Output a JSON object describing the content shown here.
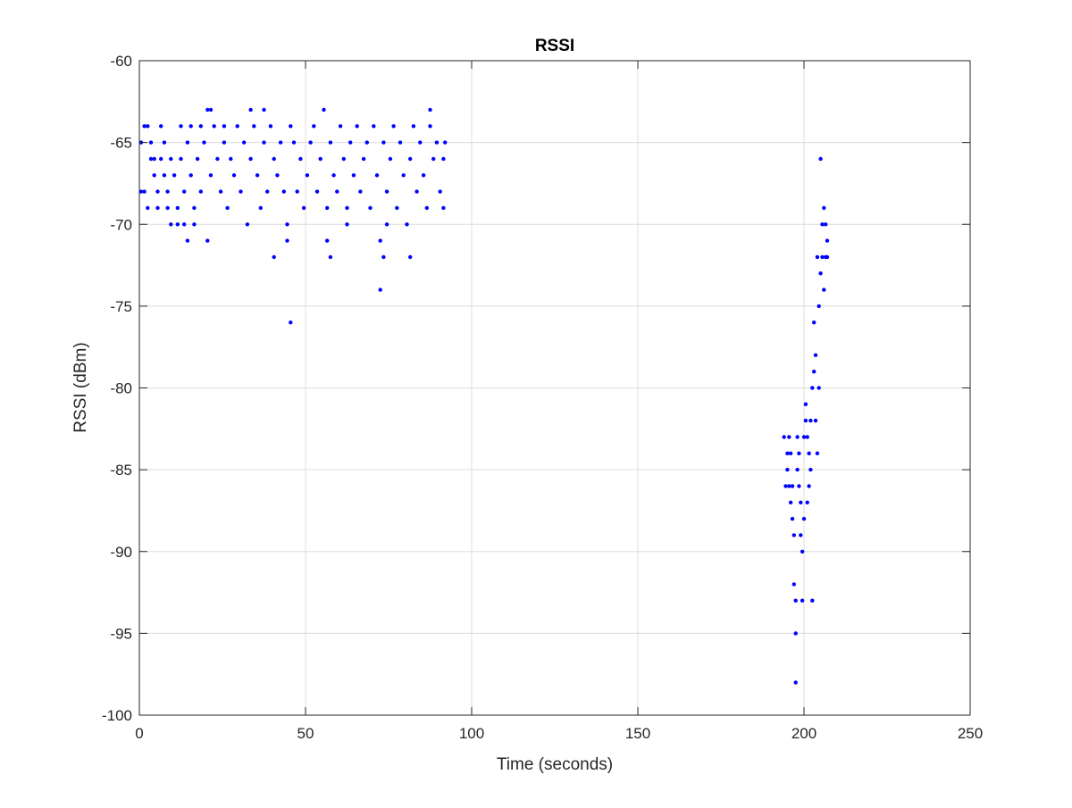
{
  "chart_data": {
    "type": "scatter",
    "title": "RSSI",
    "xlabel": "Time (seconds)",
    "ylabel": "RSSI (dBm)",
    "xlim": [
      0,
      250
    ],
    "ylim": [
      -100,
      -60
    ],
    "x_ticks": [
      "0",
      "50",
      "100",
      "150",
      "200",
      "250"
    ],
    "y_ticks": [
      "-60",
      "-65",
      "-70",
      "-75",
      "-80",
      "-85",
      "-90",
      "-95",
      "-100"
    ],
    "grid": true,
    "colors": {
      "marker": "#0000ff",
      "grid": "#dcdcdc",
      "axes": "#262626"
    },
    "series": [
      {
        "points": [
          [
            0.5,
            -65
          ],
          [
            1.5,
            -64
          ],
          [
            2.5,
            -64
          ],
          [
            0.5,
            -68
          ],
          [
            1.5,
            -68
          ],
          [
            2.5,
            -69
          ],
          [
            3.5,
            -65
          ],
          [
            3.5,
            -66
          ],
          [
            4.5,
            -66
          ],
          [
            4.5,
            -67
          ],
          [
            5.5,
            -68
          ],
          [
            5.5,
            -69
          ],
          [
            6.5,
            -64
          ],
          [
            6.5,
            -66
          ],
          [
            7.5,
            -65
          ],
          [
            7.5,
            -67
          ],
          [
            8.5,
            -68
          ],
          [
            8.5,
            -69
          ],
          [
            9.5,
            -70
          ],
          [
            9.5,
            -66
          ],
          [
            10.5,
            -67
          ],
          [
            11.5,
            -69
          ],
          [
            11.5,
            -70
          ],
          [
            12.5,
            -64
          ],
          [
            12.5,
            -66
          ],
          [
            13.5,
            -68
          ],
          [
            13.5,
            -70
          ],
          [
            14.5,
            -71
          ],
          [
            14.5,
            -65
          ],
          [
            15.5,
            -64
          ],
          [
            15.5,
            -67
          ],
          [
            16.5,
            -70
          ],
          [
            16.5,
            -69
          ],
          [
            17.5,
            -66
          ],
          [
            18.5,
            -64
          ],
          [
            18.5,
            -68
          ],
          [
            19.5,
            -65
          ],
          [
            20.5,
            -71
          ],
          [
            20.5,
            -63
          ],
          [
            21.5,
            -63
          ],
          [
            21.5,
            -67
          ],
          [
            22.5,
            -64
          ],
          [
            23.5,
            -66
          ],
          [
            24.5,
            -68
          ],
          [
            25.5,
            -64
          ],
          [
            25.5,
            -65
          ],
          [
            26.5,
            -69
          ],
          [
            27.5,
            -66
          ],
          [
            28.5,
            -67
          ],
          [
            29.5,
            -64
          ],
          [
            30.5,
            -68
          ],
          [
            31.5,
            -65
          ],
          [
            32.5,
            -70
          ],
          [
            33.5,
            -63
          ],
          [
            33.5,
            -66
          ],
          [
            34.5,
            -64
          ],
          [
            35.5,
            -67
          ],
          [
            36.5,
            -69
          ],
          [
            37.5,
            -63
          ],
          [
            37.5,
            -65
          ],
          [
            38.5,
            -68
          ],
          [
            39.5,
            -64
          ],
          [
            40.5,
            -72
          ],
          [
            40.5,
            -66
          ],
          [
            41.5,
            -67
          ],
          [
            42.5,
            -65
          ],
          [
            43.5,
            -68
          ],
          [
            44.5,
            -71
          ],
          [
            44.5,
            -70
          ],
          [
            45.5,
            -76
          ],
          [
            45.5,
            -64
          ],
          [
            46.5,
            -65
          ],
          [
            47.5,
            -68
          ],
          [
            48.5,
            -66
          ],
          [
            49.5,
            -69
          ],
          [
            50.5,
            -67
          ],
          [
            51.5,
            -65
          ],
          [
            52.5,
            -64
          ],
          [
            53.5,
            -68
          ],
          [
            54.5,
            -66
          ],
          [
            55.5,
            -63
          ],
          [
            56.5,
            -71
          ],
          [
            56.5,
            -69
          ],
          [
            57.5,
            -72
          ],
          [
            57.5,
            -65
          ],
          [
            58.5,
            -67
          ],
          [
            59.5,
            -68
          ],
          [
            60.5,
            -64
          ],
          [
            61.5,
            -66
          ],
          [
            62.5,
            -70
          ],
          [
            62.5,
            -69
          ],
          [
            63.5,
            -65
          ],
          [
            64.5,
            -67
          ],
          [
            65.5,
            -64
          ],
          [
            66.5,
            -68
          ],
          [
            67.5,
            -66
          ],
          [
            68.5,
            -65
          ],
          [
            69.5,
            -69
          ],
          [
            70.5,
            -64
          ],
          [
            71.5,
            -67
          ],
          [
            72.5,
            -74
          ],
          [
            72.5,
            -71
          ],
          [
            73.5,
            -72
          ],
          [
            73.5,
            -65
          ],
          [
            74.5,
            -70
          ],
          [
            74.5,
            -68
          ],
          [
            75.5,
            -66
          ],
          [
            76.5,
            -64
          ],
          [
            77.5,
            -69
          ],
          [
            78.5,
            -65
          ],
          [
            79.5,
            -67
          ],
          [
            80.5,
            -70
          ],
          [
            81.5,
            -72
          ],
          [
            81.5,
            -66
          ],
          [
            82.5,
            -64
          ],
          [
            83.5,
            -68
          ],
          [
            84.5,
            -65
          ],
          [
            85.5,
            -67
          ],
          [
            86.5,
            -69
          ],
          [
            87.5,
            -63
          ],
          [
            87.5,
            -64
          ],
          [
            88.5,
            -66
          ],
          [
            89.5,
            -65
          ],
          [
            90.5,
            -68
          ],
          [
            91.5,
            -69
          ],
          [
            91.5,
            -66
          ],
          [
            92,
            -65
          ],
          [
            194,
            -83
          ],
          [
            194.5,
            -86
          ],
          [
            195,
            -84
          ],
          [
            195,
            -85
          ],
          [
            195.5,
            -83
          ],
          [
            195.5,
            -86
          ],
          [
            196,
            -84
          ],
          [
            196,
            -87
          ],
          [
            196.5,
            -88
          ],
          [
            196.5,
            -86
          ],
          [
            197,
            -92
          ],
          [
            197,
            -89
          ],
          [
            197.5,
            -93
          ],
          [
            197.5,
            -95
          ],
          [
            197.5,
            -98
          ],
          [
            198,
            -83
          ],
          [
            198,
            -85
          ],
          [
            198.5,
            -84
          ],
          [
            198.5,
            -86
          ],
          [
            199,
            -89
          ],
          [
            199,
            -87
          ],
          [
            199.5,
            -93
          ],
          [
            199.5,
            -90
          ],
          [
            200,
            -83
          ],
          [
            200,
            -88
          ],
          [
            200.5,
            -82
          ],
          [
            200.5,
            -81
          ],
          [
            201,
            -83
          ],
          [
            201,
            -87
          ],
          [
            201.5,
            -86
          ],
          [
            201.5,
            -84
          ],
          [
            202,
            -85
          ],
          [
            202,
            -82
          ],
          [
            202.5,
            -93
          ],
          [
            202.5,
            -80
          ],
          [
            203,
            -79
          ],
          [
            203,
            -76
          ],
          [
            203.5,
            -82
          ],
          [
            203.5,
            -78
          ],
          [
            204,
            -72
          ],
          [
            204,
            -84
          ],
          [
            204.5,
            -80
          ],
          [
            204.5,
            -75
          ],
          [
            205,
            -73
          ],
          [
            205,
            -66
          ],
          [
            205.5,
            -70
          ],
          [
            205.5,
            -72
          ],
          [
            206,
            -69
          ],
          [
            206,
            -74
          ],
          [
            206.5,
            -70
          ],
          [
            206.5,
            -72
          ],
          [
            207,
            -71
          ],
          [
            207,
            -72
          ]
        ]
      }
    ]
  }
}
